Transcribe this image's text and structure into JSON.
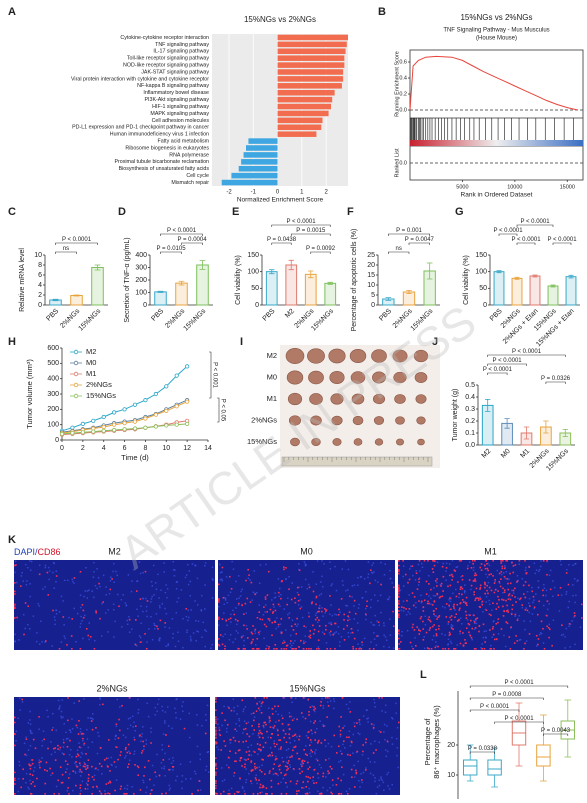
{
  "chart_data": [
    {
      "type": "barh",
      "panel": "A",
      "title": "15%NGs vs 2%NGs",
      "xlabel": "Normalized Enrichment Score",
      "categories": [
        "Cytokine-cytokine receptor interaction",
        "TNF signaling pathway",
        "IL-17 signaling pathway",
        "Toll-like receptor signaling pathway",
        "NOD-like receptor signaling pathway",
        "JAK-STAT signaling pathway",
        "Viral protein interaction with cytokine and cytokine receptor",
        "NF-kappa B signaling pathway",
        "Inflammatory bowel disease",
        "PI3K-Akt signaling pathway",
        "HIF-1 signaling pathway",
        "MAPK signaling pathway",
        "Cell adhesion molecules",
        "PD-L1 expression and PD-1 checkpoint pathway in cancer",
        "Human immunodeficiency virus 1 infection",
        "Fatty acid metabolism",
        "Ribosome biogenesis in eukaryotes",
        "RNA polymerase",
        "Proximal tubule bicarbonate reclamation",
        "Biosynthesis of unsaturated fatty acids",
        "Cell cycle",
        "Mismatch repair"
      ],
      "values": [
        2.9,
        2.85,
        2.8,
        2.75,
        2.75,
        2.7,
        2.7,
        2.65,
        2.35,
        2.25,
        2.2,
        2.1,
        1.85,
        1.8,
        1.6,
        -1.2,
        -1.3,
        -1.4,
        -1.5,
        -1.6,
        -1.9,
        -2.3
      ],
      "positive_color": "#f26d4f",
      "negative_color": "#3ea6e0",
      "xlim": [
        -2.7,
        2.9
      ],
      "xticks": [
        -2,
        -1,
        0,
        1,
        2
      ]
    },
    {
      "type": "gsea",
      "panel": "B",
      "title": "15%NGs vs 2%NGs",
      "subtitle": [
        "TNF Signaling Pathway - Mus Musculus",
        "(House Mouse)"
      ],
      "ylabel": "Running Enrichment Score",
      "ranked_label": "Ranked List",
      "xlabel": "Rank in Ordered Dataset",
      "x": [
        0,
        300,
        800,
        1500,
        2500,
        4000,
        5000,
        6000,
        7000,
        8000,
        9000,
        10000,
        11000,
        12000,
        13000,
        14000,
        15000,
        16000
      ],
      "values": [
        0,
        0.55,
        0.62,
        0.66,
        0.67,
        0.66,
        0.62,
        0.55,
        0.48,
        0.42,
        0.36,
        0.3,
        0.24,
        0.18,
        0.12,
        0.07,
        0.03,
        0
      ],
      "color": "#e8453c",
      "hits": [
        50,
        120,
        200,
        300,
        380,
        450,
        560,
        650,
        800,
        900,
        1000,
        1150,
        1300,
        1500,
        1700,
        1900,
        2100,
        2400,
        2700,
        3000,
        3300,
        3600,
        4000,
        4400,
        4800,
        5200,
        5700,
        6100,
        6600,
        7200,
        7800,
        8400,
        9000,
        9700,
        10400,
        11200,
        12000,
        12900,
        13800,
        14700,
        15600
      ],
      "xlim": [
        0,
        16500
      ],
      "xticks": [
        5000,
        10000,
        15000
      ],
      "ylim": [
        -0.1,
        0.75
      ],
      "yticks": [
        {
          "value": 0,
          "label": "0.0"
        },
        0.2,
        0.4,
        0.6
      ],
      "ranked_ylim": [
        -1,
        1
      ],
      "ranked_yticks": [
        {
          "value": 0,
          "label": "0.0"
        }
      ]
    },
    {
      "type": "bar",
      "panel": "C",
      "ylabel": "Relative mRNA level",
      "categories": [
        "PBS",
        "2%NGs",
        "15%NGs"
      ],
      "values": [
        1,
        1.9,
        7.5
      ],
      "errors": [
        0.15,
        0.1,
        0.5
      ],
      "colors": [
        "#3aa8c9",
        "#e8a33d",
        "#7cbf5a"
      ],
      "ylim": [
        0,
        10
      ],
      "yticks": [
        0,
        2,
        4,
        6,
        8,
        10
      ],
      "annotations": [
        "ns",
        "P < 0.0001"
      ]
    },
    {
      "type": "bar",
      "panel": "D",
      "ylabel": "Secretion of TNF-α (pg/mL)",
      "categories": [
        "PBS",
        "2%NGs",
        "15%NGs"
      ],
      "values": [
        105,
        175,
        320
      ],
      "errors": [
        5,
        15,
        35
      ],
      "colors": [
        "#3aa8c9",
        "#e8a33d",
        "#7cbf5a"
      ],
      "ylim": [
        0,
        400
      ],
      "yticks": [
        0,
        100,
        200,
        300,
        400
      ],
      "annotations": [
        "P < 0.0001",
        "P = 0.0004",
        "P = 0.0105"
      ]
    },
    {
      "type": "bar",
      "panel": "E",
      "ylabel": "Cell viability (%)",
      "categories": [
        "PBS",
        "M2",
        "2%NGs",
        "15%NGs"
      ],
      "values": [
        100,
        120,
        92,
        65
      ],
      "errors": [
        6,
        14,
        10,
        3
      ],
      "colors": [
        "#3aa8c9",
        "#e0796d",
        "#e8a33d",
        "#7cbf5a"
      ],
      "ylim": [
        0,
        150
      ],
      "yticks": [
        0,
        50,
        100,
        150
      ],
      "annotations": [
        "P < 0.0001",
        "P = 0.0015",
        "P = 0.0438",
        "P = 0.0092"
      ]
    },
    {
      "type": "bar",
      "panel": "F",
      "ylabel": "Percentage of apoptotic cells (%)",
      "categories": [
        "PBS",
        "2%NGs",
        "15%NGs"
      ],
      "values": [
        3,
        6.5,
        17
      ],
      "errors": [
        0.7,
        0.8,
        4
      ],
      "colors": [
        "#3aa8c9",
        "#e8a33d",
        "#7cbf5a"
      ],
      "ylim": [
        0,
        25
      ],
      "yticks": [
        0,
        5,
        10,
        15,
        20,
        25
      ],
      "annotations": [
        "P = 0.001",
        "P = 0.0047",
        "ns"
      ]
    },
    {
      "type": "bar",
      "panel": "G",
      "ylabel": "Cell viability (%)",
      "categories": [
        "PBS",
        "2%NGs",
        "2%NGs + Etan",
        "15%NGs",
        "15%NGs + Etan"
      ],
      "values": [
        100,
        80,
        87,
        57,
        85
      ],
      "errors": [
        3,
        3,
        3,
        3,
        4
      ],
      "colors": [
        "#3aa8c9",
        "#e8a33d",
        "#e0796d",
        "#7cbf5a",
        "#3aa8c9"
      ],
      "ylim": [
        0,
        150
      ],
      "yticks": [
        0,
        50,
        100,
        150
      ],
      "annotations": [
        "P < 0.0001",
        "P < 0.0001",
        "P < 0.0001",
        "P < 0.0001"
      ]
    },
    {
      "type": "line",
      "panel": "H",
      "xlabel": "Time (d)",
      "ylabel": "Tumor volume (mm³)",
      "x": [
        0,
        1,
        2,
        3,
        4,
        5,
        6,
        7,
        8,
        9,
        10,
        11,
        12
      ],
      "series": [
        {
          "name": "M2",
          "color": "#2aa6c7",
          "values": [
            60,
            80,
            105,
            125,
            150,
            180,
            200,
            230,
            260,
            300,
            350,
            420,
            480
          ]
        },
        {
          "name": "M0",
          "color": "#5b7f9b",
          "values": [
            50,
            60,
            70,
            80,
            95,
            110,
            120,
            130,
            150,
            170,
            200,
            230,
            260
          ]
        },
        {
          "name": "M1",
          "color": "#e0796d",
          "values": [
            35,
            40,
            45,
            50,
            55,
            60,
            65,
            70,
            80,
            90,
            100,
            115,
            125
          ]
        },
        {
          "name": "2%NGs",
          "color": "#e8a33d",
          "values": [
            45,
            55,
            65,
            75,
            85,
            100,
            110,
            120,
            140,
            165,
            190,
            220,
            250
          ]
        },
        {
          "name": "15%NGs",
          "color": "#8bbf5a",
          "values": [
            40,
            45,
            50,
            55,
            60,
            65,
            70,
            75,
            80,
            88,
            95,
            100,
            105
          ]
        }
      ],
      "xlim": [
        0,
        14
      ],
      "xticks": [
        0,
        2,
        4,
        6,
        8,
        10,
        12,
        14
      ],
      "ylim": [
        0,
        600
      ],
      "yticks": [
        0,
        100,
        200,
        300,
        400,
        500,
        600
      ],
      "annotations": [
        "P < 0.001",
        "P < 0.05"
      ]
    },
    {
      "type": "bar",
      "panel": "J",
      "ylabel": "Tumor weight (g)",
      "categories": [
        "M2",
        "M0",
        "M1",
        "2%NGs",
        "15%NGs"
      ],
      "values": [
        0.33,
        0.18,
        0.1,
        0.15,
        0.1
      ],
      "errors": [
        0.05,
        0.04,
        0.05,
        0.05,
        0.03
      ],
      "colors": [
        "#2aa6c7",
        "#5b8db8",
        "#e0796d",
        "#e8a33d",
        "#8bbf5a"
      ],
      "ylim": [
        0,
        0.5
      ],
      "yticks": [
        {
          "value": 0,
          "label": "0.0"
        },
        0.1,
        0.2,
        0.3,
        0.4,
        0.5
      ],
      "annotations": [
        "P < 0.0001",
        "P < 0.0001",
        "P < 0.0001",
        "P = 0.0326"
      ]
    },
    {
      "type": "box",
      "panel": "L",
      "ylabel": [
        "Percentage of",
        "86⁺ macrophages (%)"
      ],
      "boxes": [
        {
          "color": "#3aa8c9",
          "min": 8,
          "q1": 10,
          "median": 13,
          "q3": 15,
          "max": 20
        },
        {
          "color": "#3aa8c9",
          "min": 6,
          "q1": 10,
          "median": 12,
          "q3": 15,
          "max": 19
        },
        {
          "color": "#e0796d",
          "min": 13,
          "q1": 20,
          "median": 24,
          "q3": 28,
          "max": 34
        },
        {
          "color": "#e8a33d",
          "min": 8,
          "q1": 13,
          "median": 16,
          "q3": 20,
          "max": 30
        },
        {
          "color": "#8bbf5a",
          "min": 16,
          "q1": 22,
          "median": 25,
          "q3": 28,
          "max": 35
        }
      ],
      "ylim": [
        2,
        38
      ],
      "yticks": [
        10,
        20
      ],
      "annotations": [
        "P < 0.0001",
        "P = 0.0008",
        "P < 0.0001",
        "P < 0.0001",
        "P = 0.0043",
        "P = 0.0338"
      ]
    }
  ],
  "photo": {
    "panel": "I",
    "rows": [
      "M2",
      "M0",
      "M1",
      "2%NGs",
      "15%NGs"
    ]
  },
  "micrographs": {
    "panel": "K",
    "stain": [
      "DAPI/",
      "CD86"
    ],
    "titles": [
      "M2",
      "M0",
      "M1",
      "2%NGs",
      "15%NGs"
    ]
  },
  "watermark": "ARTICLE IN PRESS"
}
